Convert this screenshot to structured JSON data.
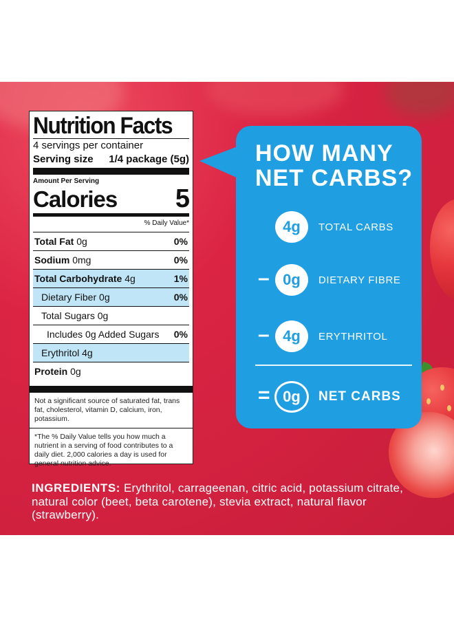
{
  "nutrition": {
    "title": "Nutrition Facts",
    "servings_per_container": "4 servings per container",
    "serving_size_label": "Serving size",
    "serving_size_value": "1/4 package (5g)",
    "amount_per_serving": "Amount Per Serving",
    "calories_label": "Calories",
    "calories_value": "5",
    "daily_value_header": "% Daily Value*",
    "rows": [
      {
        "name": "Total Fat",
        "amount": "0g",
        "dv": "0%"
      },
      {
        "name": "Sodium",
        "amount": "0mg",
        "dv": "0%"
      },
      {
        "name": "Total Carbohydrate",
        "amount": "4g",
        "dv": "1%"
      },
      {
        "name": "Dietary Fiber",
        "amount": "0g",
        "dv": "0%"
      },
      {
        "name": "Total Sugars",
        "amount": "0g",
        "dv": ""
      },
      {
        "name": "Includes",
        "amount": "0g Added Sugars",
        "dv": "0%"
      },
      {
        "name": "Erythritol",
        "amount": "4g",
        "dv": ""
      },
      {
        "name": "Protein",
        "amount": "0g",
        "dv": ""
      }
    ],
    "note_1": "Not a significant source of saturated fat, trans fat, cholesterol, vitamin D, calcium, iron, potassium.",
    "note_2": "*The % Daily Value tells you how much a nutrient in a serving of food contributes to a daily diet. 2,000 calories a day is used for general nutrition advice."
  },
  "bubble": {
    "question_line1": "HOW MANY",
    "question_line2": "NET CARBS?",
    "items": [
      {
        "operator": "",
        "value": "4g",
        "label": "TOTAL CARBS"
      },
      {
        "operator": "–",
        "value": "0g",
        "label": "DIETARY FIBRE"
      },
      {
        "operator": "–",
        "value": "4g",
        "label": "ERYTHRITOL"
      }
    ],
    "result": {
      "operator": "=",
      "value": "0g",
      "label": "NET CARBS"
    }
  },
  "ingredients": {
    "heading": "INGREDIENTS:",
    "text": " Erythritol, carrageenan, citric acid, potassium citrate, natural color (beet, beta carotene), stevia extract, natural flavor (strawberry)."
  },
  "colors": {
    "background_red": "#d0213f",
    "bubble_blue": "#1f9ee2",
    "highlight_blue": "#bfe5f7"
  }
}
